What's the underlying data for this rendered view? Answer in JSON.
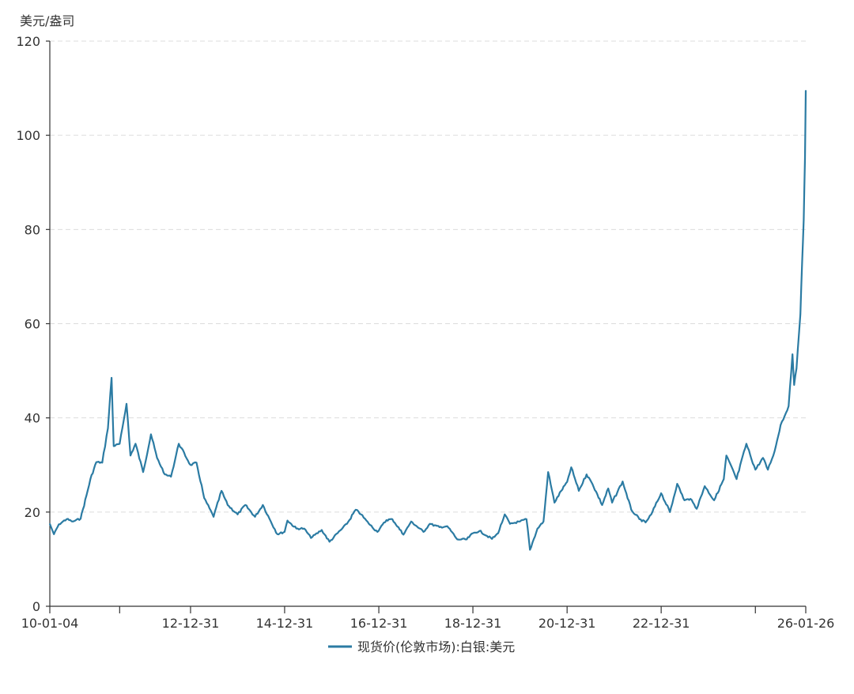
{
  "chart_data": {
    "type": "line",
    "unit_label": "美元/盎司",
    "ylim": [
      0,
      120
    ],
    "yticks": [
      0,
      20,
      40,
      60,
      80,
      100,
      120
    ],
    "xlim": [
      "2010-01-04",
      "2026-01-26"
    ],
    "xtick_labels": [
      {
        "date": "2010-01-04",
        "label": "10-01-04"
      },
      {
        "date": "2011-06-30",
        "label": ""
      },
      {
        "date": "2012-12-31",
        "label": "12-12-31"
      },
      {
        "date": "2014-12-31",
        "label": "14-12-31"
      },
      {
        "date": "2016-12-31",
        "label": "16-12-31"
      },
      {
        "date": "2018-12-31",
        "label": "18-12-31"
      },
      {
        "date": "2020-12-31",
        "label": "20-12-31"
      },
      {
        "date": "2022-12-31",
        "label": "22-12-31"
      },
      {
        "date": "2024-12-31",
        "label": ""
      },
      {
        "date": "2026-01-26",
        "label": "26-01-26"
      }
    ],
    "grid": true,
    "legend_position": "bottom-center",
    "series": [
      {
        "name": "现货价(伦敦市场):白银:美元",
        "color": "#2b7ba3",
        "points": [
          [
            "2010-01-04",
            17.5
          ],
          [
            "2010-02-05",
            15.3
          ],
          [
            "2010-03-15",
            17.4
          ],
          [
            "2010-05-15",
            18.5
          ],
          [
            "2010-07-01",
            18.0
          ],
          [
            "2010-08-31",
            18.6
          ],
          [
            "2010-10-15",
            23.5
          ],
          [
            "2010-11-15",
            27.0
          ],
          [
            "2010-12-31",
            30.6
          ],
          [
            "2011-02-15",
            30.5
          ],
          [
            "2011-03-31",
            37.8
          ],
          [
            "2011-04-28",
            48.5
          ],
          [
            "2011-05-15",
            34.0
          ],
          [
            "2011-06-30",
            34.5
          ],
          [
            "2011-08-01",
            39.5
          ],
          [
            "2011-08-22",
            43.0
          ],
          [
            "2011-09-22",
            32.0
          ],
          [
            "2011-10-31",
            34.5
          ],
          [
            "2011-12-29",
            28.5
          ],
          [
            "2012-02-28",
            36.5
          ],
          [
            "2012-04-15",
            31.5
          ],
          [
            "2012-06-15",
            28.0
          ],
          [
            "2012-08-01",
            27.5
          ],
          [
            "2012-10-01",
            34.5
          ],
          [
            "2012-12-31",
            30.0
          ],
          [
            "2013-02-15",
            30.5
          ],
          [
            "2013-04-16",
            23.0
          ],
          [
            "2013-06-28",
            19.0
          ],
          [
            "2013-08-28",
            24.5
          ],
          [
            "2013-10-15",
            21.5
          ],
          [
            "2013-12-31",
            19.5
          ],
          [
            "2014-03-01",
            21.5
          ],
          [
            "2014-05-15",
            19.0
          ],
          [
            "2014-07-15",
            21.5
          ],
          [
            "2014-09-15",
            18.0
          ],
          [
            "2014-11-05",
            15.3
          ],
          [
            "2014-12-31",
            15.8
          ],
          [
            "2015-01-22",
            18.2
          ],
          [
            "2015-04-01",
            16.5
          ],
          [
            "2015-06-01",
            16.5
          ],
          [
            "2015-07-24",
            14.5
          ],
          [
            "2015-10-15",
            16.2
          ],
          [
            "2015-12-14",
            13.7
          ],
          [
            "2016-02-15",
            15.5
          ],
          [
            "2016-04-28",
            17.5
          ],
          [
            "2016-07-05",
            20.5
          ],
          [
            "2016-08-15",
            19.5
          ],
          [
            "2016-10-15",
            17.5
          ],
          [
            "2016-12-20",
            15.8
          ],
          [
            "2017-02-28",
            18.3
          ],
          [
            "2017-04-15",
            18.5
          ],
          [
            "2017-07-10",
            15.2
          ],
          [
            "2017-09-08",
            18.0
          ],
          [
            "2017-12-12",
            15.8
          ],
          [
            "2018-01-31",
            17.5
          ],
          [
            "2018-04-15",
            16.8
          ],
          [
            "2018-06-15",
            17.0
          ],
          [
            "2018-09-01",
            14.2
          ],
          [
            "2018-11-13",
            14.2
          ],
          [
            "2018-12-31",
            15.5
          ],
          [
            "2019-02-20",
            16.0
          ],
          [
            "2019-05-28",
            14.3
          ],
          [
            "2019-07-15",
            15.5
          ],
          [
            "2019-09-04",
            19.5
          ],
          [
            "2019-10-15",
            17.5
          ],
          [
            "2019-12-31",
            18.0
          ],
          [
            "2020-02-20",
            18.5
          ],
          [
            "2020-03-18",
            12.0
          ],
          [
            "2020-05-15",
            16.5
          ],
          [
            "2020-07-01",
            18.0
          ],
          [
            "2020-08-06",
            28.5
          ],
          [
            "2020-09-24",
            22.0
          ],
          [
            "2020-11-15",
            24.5
          ],
          [
            "2020-12-31",
            26.4
          ],
          [
            "2021-02-01",
            29.5
          ],
          [
            "2021-04-01",
            24.5
          ],
          [
            "2021-05-31",
            28.0
          ],
          [
            "2021-07-15",
            26.0
          ],
          [
            "2021-09-29",
            21.5
          ],
          [
            "2021-11-15",
            25.0
          ],
          [
            "2021-12-15",
            22.0
          ],
          [
            "2022-03-07",
            26.5
          ],
          [
            "2022-05-13",
            20.5
          ],
          [
            "2022-07-15",
            18.5
          ],
          [
            "2022-09-01",
            17.8
          ],
          [
            "2022-10-15",
            19.5
          ],
          [
            "2022-12-31",
            24.0
          ],
          [
            "2023-03-09",
            20.0
          ],
          [
            "2023-05-04",
            26.0
          ],
          [
            "2023-06-30",
            22.5
          ],
          [
            "2023-08-15",
            22.8
          ],
          [
            "2023-10-03",
            20.7
          ],
          [
            "2023-12-04",
            25.5
          ],
          [
            "2024-02-15",
            22.5
          ],
          [
            "2024-04-30",
            27.0
          ],
          [
            "2024-05-20",
            32.0
          ],
          [
            "2024-08-07",
            27.0
          ],
          [
            "2024-10-22",
            34.5
          ],
          [
            "2024-12-31",
            29.0
          ],
          [
            "2025-02-28",
            31.5
          ],
          [
            "2025-04-07",
            29.0
          ],
          [
            "2025-05-30",
            33.0
          ],
          [
            "2025-07-15",
            38.5
          ],
          [
            "2025-09-15",
            42.5
          ],
          [
            "2025-10-15",
            53.5
          ],
          [
            "2025-10-28",
            47.0
          ],
          [
            "2025-11-15",
            50.5
          ],
          [
            "2025-12-15",
            62.0
          ],
          [
            "2025-12-29",
            73.0
          ],
          [
            "2026-01-10",
            82.0
          ],
          [
            "2026-01-20",
            95.0
          ],
          [
            "2026-01-26",
            109.5
          ]
        ]
      }
    ]
  }
}
